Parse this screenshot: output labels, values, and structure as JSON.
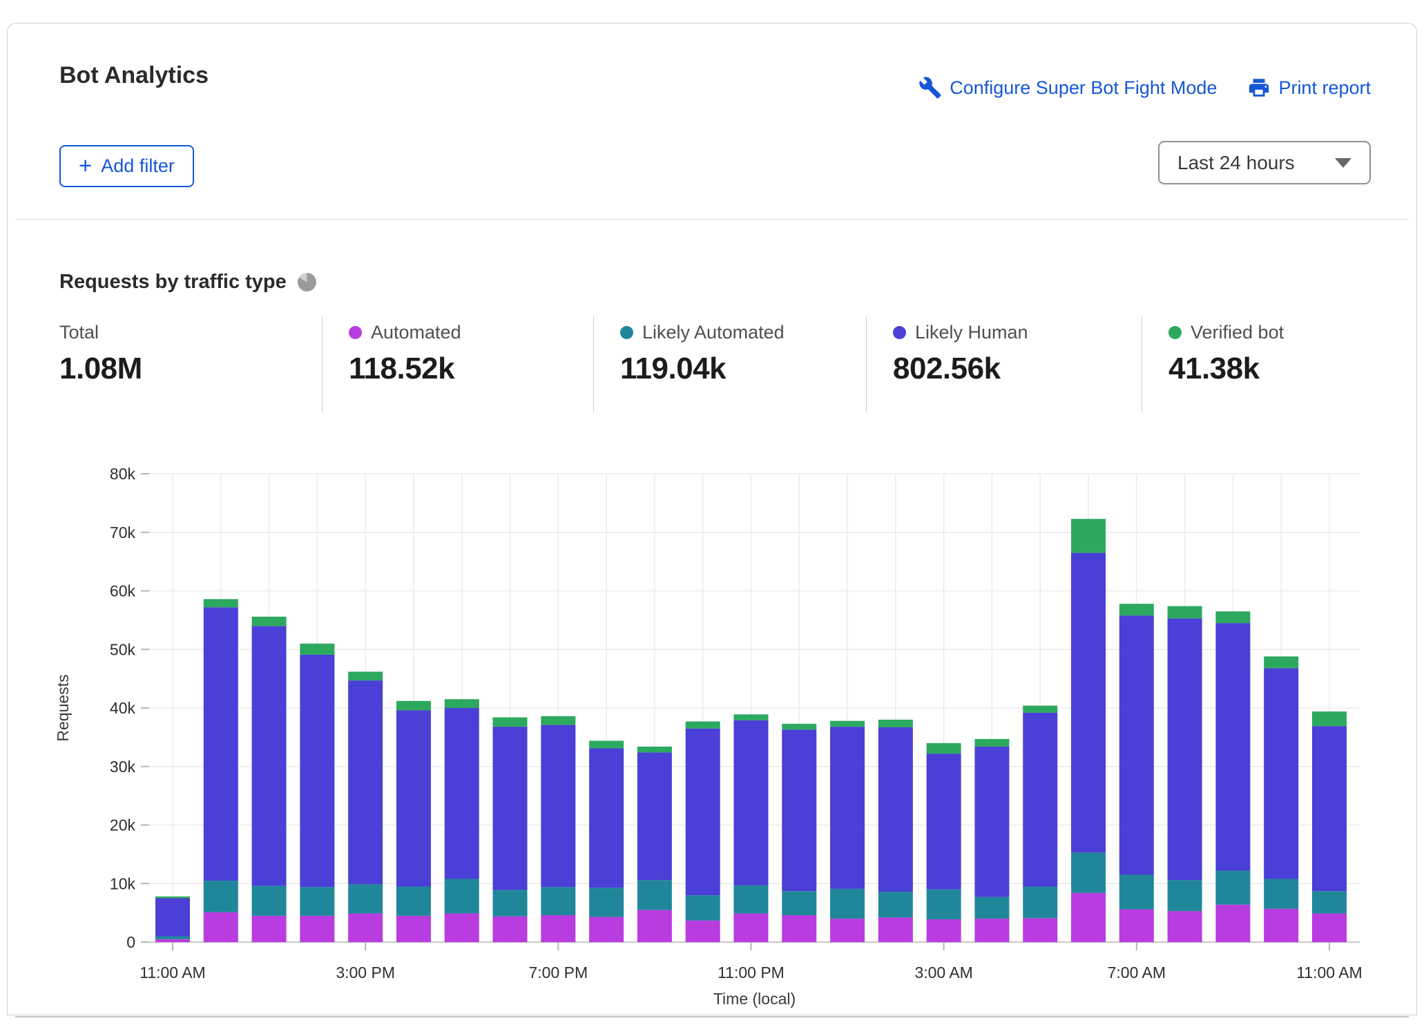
{
  "header": {
    "title": "Bot Analytics",
    "configure_link": "Configure Super Bot Fight Mode",
    "print_link": "Print report",
    "add_filter_label": "Add filter",
    "time_range": "Last 24 hours"
  },
  "section": {
    "heading": "Requests by traffic type",
    "stats": [
      {
        "label": "Total",
        "value": "1.08M",
        "dot": null
      },
      {
        "label": "Automated",
        "value": "118.52k",
        "dot": "#b83ce0"
      },
      {
        "label": "Likely Automated",
        "value": "119.04k",
        "dot": "#20879b"
      },
      {
        "label": "Likely Human",
        "value": "802.56k",
        "dot": "#4a3fd6"
      },
      {
        "label": "Verified bot",
        "value": "41.38k",
        "dot": "#2ca95f"
      }
    ]
  },
  "colors": {
    "accent": "#1556d6",
    "grid": "#ebebeb",
    "axis": "#c8c8c8",
    "tick": "#b5b5b5",
    "tick_text": "#2e2e2e",
    "axis_title": "#3a3a3a"
  },
  "chart_data": {
    "type": "bar",
    "stacked": true,
    "title": "Requests by traffic type",
    "xlabel": "Time (local)",
    "ylabel": "Requests",
    "ylim": [
      0,
      80000
    ],
    "grid": true,
    "legend_position": "top",
    "ytick_labels": [
      "0",
      "10k",
      "20k",
      "30k",
      "40k",
      "50k",
      "60k",
      "70k",
      "80k"
    ],
    "categories": [
      "11:00 AM",
      "12:00 PM",
      "1:00 PM",
      "2:00 PM",
      "3:00 PM",
      "4:00 PM",
      "5:00 PM",
      "6:00 PM",
      "7:00 PM",
      "8:00 PM",
      "9:00 PM",
      "10:00 PM",
      "11:00 PM",
      "12:00 AM",
      "1:00 AM",
      "2:00 AM",
      "3:00 AM",
      "4:00 AM",
      "5:00 AM",
      "6:00 AM",
      "7:00 AM",
      "8:00 AM",
      "9:00 AM",
      "10:00 AM",
      "11:00 AM"
    ],
    "xtick_indices": [
      0,
      4,
      8,
      12,
      16,
      20,
      24
    ],
    "xtick_labels": [
      "11:00 AM",
      "3:00 PM",
      "7:00 PM",
      "11:00 PM",
      "3:00 AM",
      "7:00 AM",
      "11:00 AM"
    ],
    "series": [
      {
        "name": "Automated",
        "color": "#b83ce0",
        "values": [
          500,
          5100,
          4500,
          4500,
          4900,
          4500,
          4900,
          4400,
          4600,
          4300,
          5500,
          3700,
          4900,
          4600,
          4000,
          4200,
          3900,
          4000,
          4100,
          8400,
          5600,
          5300,
          6400,
          5700,
          4900
        ]
      },
      {
        "name": "Likely Automated",
        "color": "#20879b",
        "values": [
          500,
          5400,
          5100,
          4900,
          5000,
          5000,
          5900,
          4500,
          4800,
          5000,
          5100,
          4300,
          4800,
          4100,
          5100,
          4400,
          5100,
          3700,
          5400,
          6900,
          5900,
          5300,
          5800,
          5100,
          3800
        ]
      },
      {
        "name": "Likely Human",
        "color": "#4a3fd6",
        "values": [
          6500,
          46700,
          44400,
          39700,
          34800,
          30100,
          29200,
          27900,
          27700,
          23800,
          21800,
          28500,
          28200,
          27600,
          27700,
          28100,
          23200,
          25700,
          29700,
          51200,
          44300,
          44700,
          42300,
          36000,
          28200
        ]
      },
      {
        "name": "Verified bot",
        "color": "#2ca95f",
        "values": [
          300,
          1400,
          1600,
          1900,
          1500,
          1600,
          1500,
          1600,
          1500,
          1300,
          1000,
          1200,
          1000,
          1000,
          1000,
          1300,
          1800,
          1300,
          1200,
          5800,
          2000,
          2100,
          2000,
          2000,
          2500
        ]
      }
    ],
    "totals": {
      "Total": "1.08M",
      "Automated": "118.52k",
      "Likely Automated": "119.04k",
      "Likely Human": "802.56k",
      "Verified bot": "41.38k"
    }
  }
}
